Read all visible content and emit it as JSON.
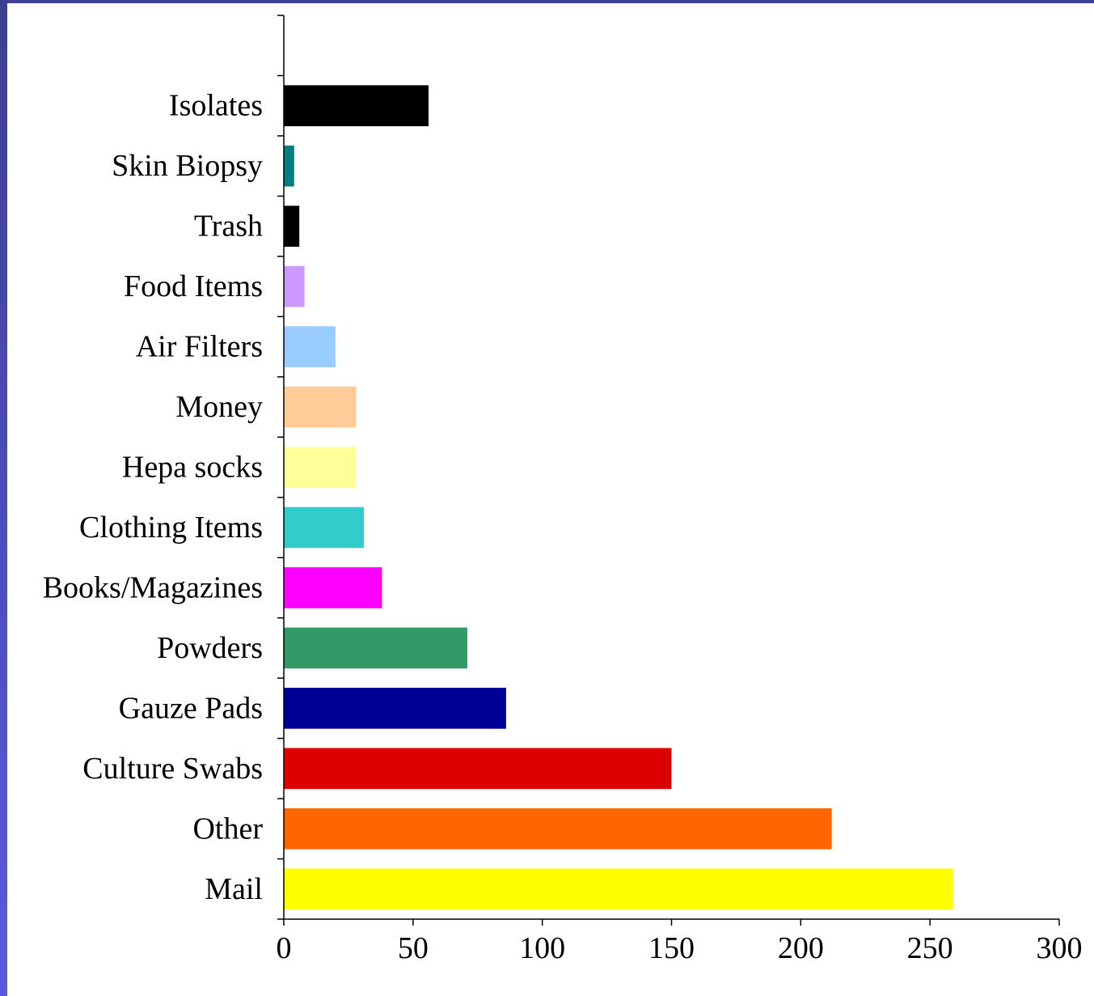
{
  "chart_data": {
    "type": "bar",
    "orientation": "horizontal",
    "categories": [
      "Isolates",
      "Skin Biopsy",
      "Trash",
      "Food Items",
      "Air Filters",
      "Money",
      "Hepa socks",
      "Clothing Items",
      "Books/Magazines",
      "Powders",
      "Gauze Pads",
      "Culture Swabs",
      "Other",
      "Mail"
    ],
    "values": [
      56,
      4,
      6,
      8,
      20,
      28,
      28,
      31,
      38,
      71,
      86,
      150,
      212,
      259
    ],
    "colors": [
      "#000000",
      "#008080",
      "#000000",
      "#cc99ff",
      "#99ccff",
      "#ffcc99",
      "#ffff99",
      "#33cccc",
      "#ff00ff",
      "#339966",
      "#000099",
      "#dd0000",
      "#ff6600",
      "#ffff00"
    ],
    "xlim": [
      0,
      300
    ],
    "xticks": [
      "0",
      "50",
      "100",
      "150",
      "200",
      "250",
      "300"
    ],
    "title": "",
    "xlabel": "",
    "ylabel": "",
    "grid": false,
    "legend": "none"
  }
}
